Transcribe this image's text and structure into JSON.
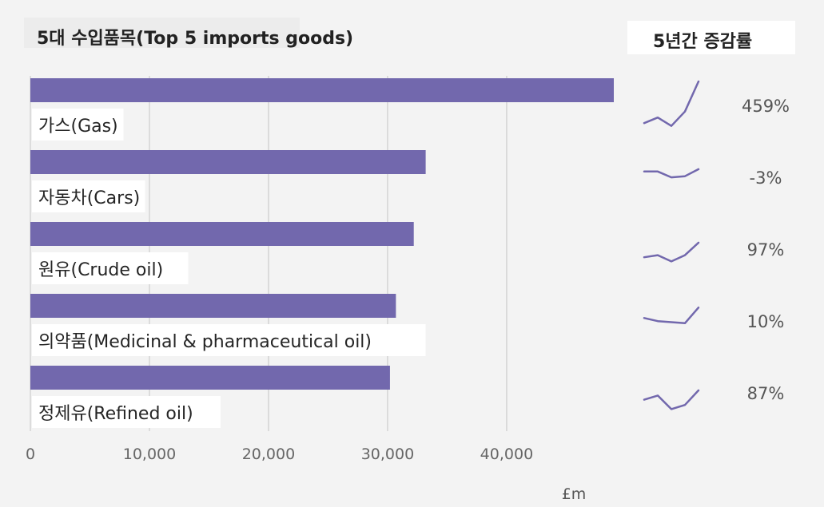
{
  "header": {
    "title": "5대 수입품목(Top 5 imports goods)",
    "trend_title": "5년간 증감률"
  },
  "colors": {
    "bar": "#7268ad",
    "sparkline": "#7268ad",
    "grid": "#d4d4d4"
  },
  "chart_data": {
    "type": "bar",
    "orientation": "horizontal",
    "title": "5대 수입품목(Top 5 imports goods)",
    "xlabel": "£m",
    "xlim": [
      0,
      49000
    ],
    "xticks": [
      0,
      10000,
      20000,
      30000,
      40000
    ],
    "xtick_labels": [
      "0",
      "10,000",
      "20,000",
      "30,000",
      "40,000"
    ],
    "grid": true,
    "categories": [
      "가스(Gas)",
      "자동차(Cars)",
      "원유(Crude oil)",
      "의약품(Medicinal & pharmaceutical oil)",
      "정제유(Refined oil)"
    ],
    "values": [
      49000,
      33200,
      32200,
      30700,
      30200
    ],
    "change_title": "5년간 증감률",
    "change_labels": [
      "459%",
      "-3%",
      "97%",
      "10%",
      "87%"
    ],
    "sparklines": [
      [
        0.1,
        0.22,
        0.04,
        0.35,
        1.0
      ],
      [
        0.7,
        0.7,
        0.2,
        0.3,
        0.9
      ],
      [
        0.3,
        0.4,
        0.1,
        0.4,
        1.0
      ],
      [
        0.45,
        0.3,
        0.25,
        0.2,
        0.95
      ],
      [
        0.55,
        0.75,
        0.1,
        0.3,
        1.0
      ]
    ]
  }
}
